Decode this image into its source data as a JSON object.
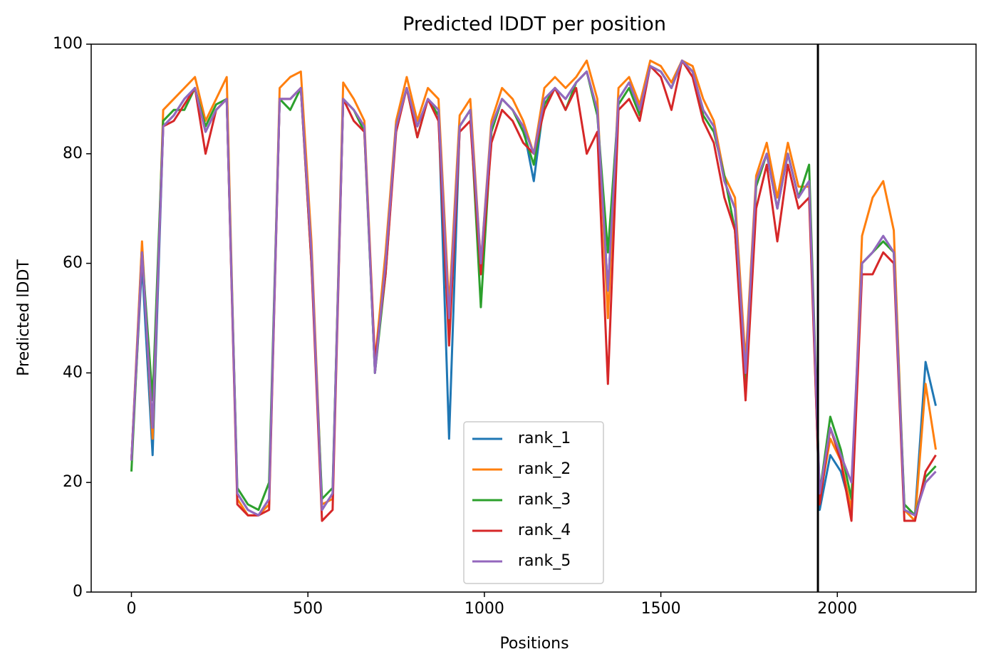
{
  "chart_data": {
    "type": "line",
    "title": "Predicted lDDT per position",
    "xlabel": "Positions",
    "ylabel": "Predicted lDDT",
    "x": [
      0,
      30,
      60,
      90,
      120,
      150,
      180,
      210,
      240,
      270,
      300,
      330,
      360,
      390,
      420,
      450,
      480,
      510,
      540,
      570,
      600,
      630,
      660,
      690,
      720,
      750,
      780,
      810,
      840,
      870,
      900,
      930,
      960,
      990,
      1020,
      1050,
      1080,
      1110,
      1140,
      1170,
      1200,
      1230,
      1260,
      1290,
      1320,
      1350,
      1380,
      1410,
      1440,
      1470,
      1500,
      1530,
      1560,
      1590,
      1620,
      1650,
      1680,
      1710,
      1740,
      1770,
      1800,
      1830,
      1860,
      1890,
      1920,
      1950,
      1980,
      2010,
      2040,
      2070,
      2100,
      2130,
      2160,
      2190,
      2220,
      2250,
      2279
    ],
    "series": [
      {
        "name": "rank_1",
        "color": "#1f77b4",
        "values": [
          24,
          60,
          25,
          85,
          87,
          90,
          92,
          84,
          88,
          90,
          18,
          15,
          14,
          17,
          90,
          90,
          92,
          62,
          15,
          18,
          90,
          88,
          85,
          40,
          60,
          85,
          92,
          85,
          90,
          88,
          28,
          85,
          88,
          58,
          85,
          90,
          88,
          85,
          75,
          90,
          92,
          90,
          93,
          95,
          88,
          55,
          90,
          93,
          88,
          96,
          95,
          92,
          97,
          95,
          88,
          85,
          75,
          70,
          40,
          75,
          80,
          70,
          80,
          72,
          75,
          15,
          25,
          22,
          15,
          60,
          62,
          65,
          62,
          15,
          14,
          42,
          34
        ]
      },
      {
        "name": "rank_2",
        "color": "#ff7f0e",
        "values": [
          24,
          64,
          28,
          88,
          90,
          92,
          94,
          86,
          90,
          94,
          17,
          14,
          14,
          16,
          92,
          94,
          95,
          64,
          16,
          17,
          93,
          90,
          86,
          42,
          62,
          86,
          94,
          86,
          92,
          90,
          52,
          87,
          90,
          60,
          86,
          92,
          90,
          86,
          80,
          92,
          94,
          92,
          94,
          97,
          90,
          50,
          92,
          94,
          89,
          97,
          96,
          93,
          97,
          96,
          90,
          86,
          76,
          72,
          42,
          76,
          82,
          72,
          82,
          74,
          74,
          17,
          28,
          24,
          15,
          65,
          72,
          75,
          66,
          15,
          13,
          38,
          26
        ]
      },
      {
        "name": "rank_3",
        "color": "#2ca02c",
        "values": [
          22,
          62,
          35,
          86,
          88,
          88,
          92,
          85,
          89,
          90,
          19,
          16,
          15,
          20,
          90,
          88,
          92,
          60,
          17,
          19,
          90,
          88,
          84,
          40,
          58,
          85,
          92,
          83,
          90,
          87,
          48,
          85,
          88,
          52,
          84,
          90,
          88,
          84,
          78,
          89,
          92,
          88,
          93,
          95,
          87,
          62,
          89,
          92,
          87,
          96,
          95,
          92,
          97,
          95,
          87,
          84,
          76,
          66,
          38,
          74,
          80,
          70,
          80,
          72,
          78,
          18,
          32,
          26,
          17,
          60,
          62,
          64,
          62,
          16,
          14,
          21,
          23
        ]
      },
      {
        "name": "rank_4",
        "color": "#d62728",
        "values": [
          24,
          62,
          30,
          85,
          86,
          89,
          92,
          80,
          88,
          90,
          16,
          14,
          14,
          15,
          90,
          90,
          92,
          60,
          13,
          15,
          90,
          86,
          84,
          42,
          58,
          84,
          92,
          83,
          90,
          86,
          45,
          84,
          86,
          58,
          82,
          88,
          86,
          82,
          80,
          88,
          92,
          88,
          92,
          80,
          84,
          38,
          88,
          90,
          86,
          96,
          94,
          88,
          97,
          94,
          86,
          82,
          72,
          66,
          35,
          70,
          78,
          64,
          78,
          70,
          72,
          16,
          30,
          24,
          13,
          58,
          58,
          62,
          60,
          13,
          13,
          22,
          25
        ]
      },
      {
        "name": "rank_5",
        "color": "#9467bd",
        "values": [
          24,
          62,
          30,
          85,
          87,
          90,
          92,
          84,
          88,
          90,
          18,
          15,
          14,
          17,
          90,
          90,
          92,
          62,
          15,
          18,
          90,
          88,
          85,
          40,
          60,
          85,
          92,
          85,
          90,
          88,
          50,
          85,
          88,
          60,
          85,
          90,
          88,
          85,
          80,
          90,
          92,
          90,
          93,
          95,
          88,
          55,
          90,
          93,
          88,
          96,
          95,
          92,
          97,
          95,
          88,
          85,
          75,
          70,
          40,
          75,
          80,
          70,
          80,
          72,
          75,
          18,
          30,
          25,
          20,
          60,
          62,
          65,
          62,
          15,
          14,
          20,
          22
        ]
      }
    ],
    "vlines": [
      1945
    ],
    "xlim": [
      -114,
      2393
    ],
    "ylim": [
      0,
      100
    ],
    "xticks": [
      0,
      500,
      1000,
      1500,
      2000
    ],
    "yticks": [
      0,
      20,
      40,
      60,
      80,
      100
    ],
    "legend": "lower center"
  }
}
